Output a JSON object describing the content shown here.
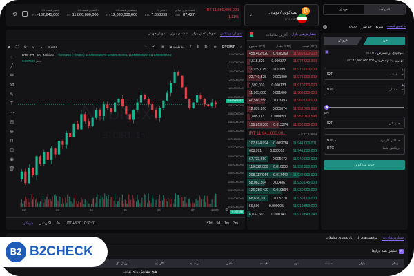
{
  "header": {
    "stats": [
      {
        "label": "تغییر قیمت 24h",
        "value": "-132,645,000",
        "unit": "IRT"
      },
      {
        "label": "کمترین قیمت 24h",
        "value": "11,860,000,000",
        "unit": "IRT"
      },
      {
        "label": "بیشترین قیمت 24h",
        "value": "12,090,000,000",
        "unit": "IRT"
      },
      {
        "label": "حجم 24h",
        "value": "7.053093",
        "unit": "BTC"
      },
      {
        "label": "قیمت بازار جهانی",
        "value": "87,427",
        "unit": "USDT"
      }
    ],
    "last_price": "IRT 11,950,000,000",
    "change": "-1.11%",
    "pair_name": "بیت‌کوین / تومان",
    "pair_symbol": "BTC / IRT"
  },
  "chart": {
    "tabs": [
      "نمودار نوبیتکس",
      "نمودار عمق بازار",
      "نقشه‌ی بازار",
      "نمودار جهانی"
    ],
    "symbol": "BTCIRT",
    "interval": "1h",
    "indicators": "اندیکاتورها",
    "save": "ذخیره",
    "legend_title": "BTC-IRT · 1h · Nobitex",
    "legend_ohlc": "+9996255 (+0.08%) 11949996257C 11930040000L 11950000000H 11940000000O",
    "volume_label": "حجم",
    "volume_value": "0.297598",
    "watermark": "Nobitex",
    "watermark_sub": "BTCIRT, 1h",
    "price_ticks": [
      "12160000000",
      "12120000000",
      "12080000000",
      "12040000000",
      "12000000000",
      "11960000000",
      "11920000000",
      "11880000000",
      "11840000000",
      "11800000000",
      "11760000000",
      "11720000000",
      "11680000000",
      "11640000000",
      "11600000000",
      "11560000000",
      "11520000000",
      "11480000000",
      "11440000000"
    ],
    "current_price_tag": "11949996257",
    "volume_tag": "0.297598",
    "time_ticks": [
      "22",
      "23",
      "24",
      "25",
      "26",
      "27",
      "18:00"
    ],
    "price_path": [
      11560,
      11600,
      11540,
      11620,
      11580,
      11680,
      11640,
      11700,
      11660,
      11720,
      11690,
      11760,
      11740,
      11800,
      11780,
      11850,
      11820,
      11900,
      11860,
      11840,
      11880,
      11920,
      11890,
      11950,
      11930,
      11910,
      11960,
      11980,
      11940,
      11900,
      11870,
      11920,
      11960,
      12000,
      11980,
      11950,
      11920,
      11880,
      11930,
      11970,
      12010,
      12060,
      12120,
      12100,
      12040,
      11980,
      11930,
      11960,
      12000,
      11980,
      11950,
      11940,
      11960,
      11950
    ],
    "ranges": [
      "1d",
      "5d",
      "1m",
      "3m"
    ],
    "timezone": "UTC+3:30 10:32:01",
    "log": "لگاریتمی",
    "auto": "خودکار"
  },
  "orderbook": {
    "tabs": [
      "سفارش‌های بازار",
      "آخرین معاملات"
    ],
    "columns": [
      "قیمت (IRT)",
      "مقدار (BTC)",
      "مجموع (IRT)"
    ],
    "asks": [
      [
        "11,980,000,000",
        "0.038269",
        "458,462,620",
        1.0
      ],
      [
        "11,977,000,000",
        "0.000377",
        "4,515,329",
        0.04
      ],
      [
        "11,975,000,000",
        "0.000997",
        "11,939,075",
        0.07
      ],
      [
        "11,975,000,000",
        "0.001899",
        "22,740,525",
        0.2
      ],
      [
        "11,970,000,000",
        "0.000133",
        "1,592,010",
        0.03
      ],
      [
        "11,965,000,000",
        "0.001000",
        "11,965,000",
        0.07
      ],
      [
        "11,960,000,000",
        "0.003393",
        "40,580,958",
        0.25
      ],
      [
        "11,952,700,999",
        "0.001074",
        "12,837,200",
        0.08
      ],
      [
        "11,952,700,598",
        "0.000653",
        "7,805,113",
        0.05
      ],
      [
        "11,950,000,000",
        "0.013374",
        "159,819,300",
        0.45
      ]
    ],
    "mid_price": "IRT 11,941,000,001",
    "mid_usd": "≈ $ 87,349.94",
    "bids": [
      [
        "11,941,000,001",
        "0.009034",
        "107,874,994",
        0.4
      ],
      [
        "11,941,000,000",
        "0.000051",
        "608,991",
        0.03
      ],
      [
        "11,940,000,000",
        "0.005672",
        "67,723,680",
        0.3
      ],
      [
        "11,932,200,000",
        "0.010000",
        "119,322,000",
        0.45
      ],
      [
        "11,932,000,000",
        "0.017442",
        "208,117,944",
        0.72
      ],
      [
        "11,930,045,000",
        "0.004867",
        "58,063,504",
        0.25
      ],
      [
        "11,930,000,009",
        "0.010594",
        "126,386,420",
        0.48
      ],
      [
        "11,930,000,000",
        "0.005770",
        "68,836,100",
        0.3
      ],
      [
        "11,919,850,000",
        "0.000005",
        "59,599",
        0.02
      ],
      [
        "11,919,843,243",
        "0.000741",
        "8,832,603",
        0.05
      ]
    ]
  },
  "trade": {
    "market_tabs": [
      "اسپات",
      "تعهدی"
    ],
    "order_types": [
      "با تعیین قیمت",
      "سریع",
      "حد ضرر",
      "OCO"
    ],
    "buy": "خرید",
    "sell": "فروش",
    "balance_label": "موجودی در دسترس:",
    "balance_value": "0",
    "balance_unit": "IRT",
    "best_label": "بهترین پیشنهاد فروش:",
    "best_value": "11,950,000,000",
    "best_unit": "IRT",
    "price_label": "قیمت",
    "price_unit": "IRT",
    "amount_label": "مقدار",
    "amount_unit": "BTC",
    "slider_percent": "0%",
    "slider_value": 0,
    "total_label": "جمع کل",
    "total_unit": "IRT",
    "fee_label": "حداکثر کارمزد",
    "fee_value": "BTC -",
    "receive_label": "دریافتی شما",
    "receive_value": "BTC -",
    "submit": "خرید بیت‌کوین"
  },
  "bottom": {
    "tabs": [
      "سفارش‌های باز",
      "موقعیت‌های باز",
      "تاریخچه‌ی معاملات"
    ],
    "show_all": "نمایش همه بازارها",
    "columns": [
      "زمان",
      "بازار",
      "سمت",
      "نوع",
      "قیمت",
      "مقدار",
      "پر شده",
      "کارمزد",
      "ارزش کل"
    ],
    "empty": "هیچ سفارش بازی ندارید"
  },
  "watermark_logo": "B2CHECK",
  "colors": {
    "green": "#19b68f",
    "red": "#e0404a",
    "accent": "#8b6cf0",
    "teal_button": "#1f8f83"
  }
}
